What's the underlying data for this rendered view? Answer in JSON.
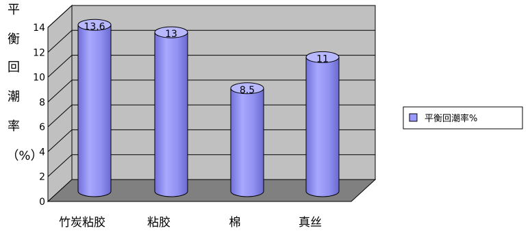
{
  "chart_data": {
    "type": "bar",
    "style": "3d-cylinder",
    "title": "",
    "xlabel": "",
    "ylabel": "平衡回潮率（%）",
    "ylabel_chars": [
      "平",
      "衡",
      "回",
      "潮",
      "率",
      "（%）"
    ],
    "categories": [
      "竹炭粘胶",
      "粘胶",
      "棉",
      "真丝"
    ],
    "series": [
      {
        "name": "平衡回潮率%",
        "values": [
          13.6,
          13,
          8.5,
          11
        ]
      }
    ],
    "data_labels": [
      "13.6",
      "13",
      "8.5",
      "11"
    ],
    "ylim": [
      0,
      14
    ],
    "yticks": [
      "0",
      "2",
      "4",
      "6",
      "8",
      "10",
      "12",
      "14"
    ],
    "grid": true,
    "legend_position": "right",
    "colors": {
      "bar_fill": "#9999ff",
      "bar_top": "#b8b8ff",
      "bar_outline": "#000000",
      "wall": "#c0c0c0",
      "floor": "#808080",
      "gridline": "#000000"
    }
  }
}
